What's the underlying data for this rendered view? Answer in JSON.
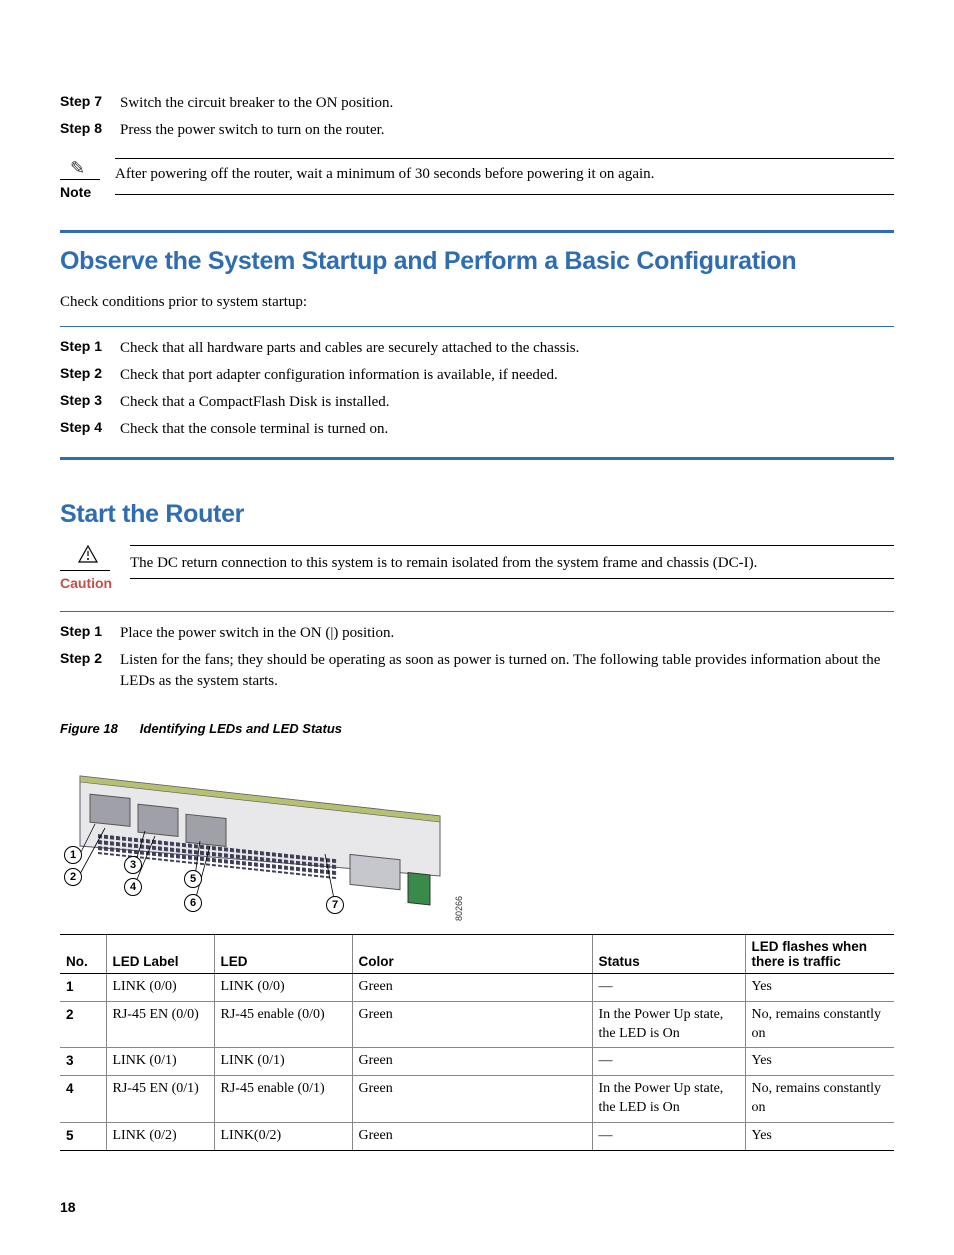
{
  "top_steps": [
    {
      "label": "Step 7",
      "text": "Switch the circuit breaker to the ON position."
    },
    {
      "label": "Step 8",
      "text": "Press the power switch to turn on the router."
    }
  ],
  "note": {
    "label": "Note",
    "text": "After powering off the router, wait a minimum of 30 seconds before powering it on again."
  },
  "section_a": {
    "heading": "Observe the System Startup and Perform a Basic Configuration",
    "intro": "Check conditions prior to system startup:",
    "steps": [
      {
        "label": "Step 1",
        "text": "Check that all hardware parts and cables are securely attached to the chassis."
      },
      {
        "label": "Step 2",
        "text": "Check that port adapter configuration information is available, if needed."
      },
      {
        "label": "Step 3",
        "text": "Check that a CompactFlash Disk is installed."
      },
      {
        "label": "Step 4",
        "text": "Check that the console terminal is turned on."
      }
    ]
  },
  "section_b": {
    "heading": "Start the Router",
    "caution": {
      "label": "Caution",
      "text": "The DC return connection to this system is to remain isolated from the system frame and chassis (DC-I)."
    },
    "steps": [
      {
        "label": "Step 1",
        "text": "Place the power switch in the ON (|) position."
      },
      {
        "label": "Step 2",
        "text": "Listen for the fans; they should be operating as soon as power is turned on. The following table provides information about the LEDs as the system starts."
      }
    ]
  },
  "figure": {
    "num": "Figure 18",
    "title": "Identifying LEDs and LED Status",
    "id_num": "80266",
    "callouts": [
      "1",
      "2",
      "3",
      "4",
      "5",
      "6",
      "7"
    ]
  },
  "table": {
    "headers": {
      "no": "No.",
      "label": "LED Label",
      "led": "LED",
      "color": "Color",
      "status": "Status",
      "flash": "LED flashes when there is traffic"
    },
    "rows": [
      {
        "no": "1",
        "label": "LINK (0/0)",
        "led": "LINK (0/0)",
        "color": "Green",
        "status": "—",
        "flash": "Yes"
      },
      {
        "no": "2",
        "label": "RJ-45 EN (0/0)",
        "led": "RJ-45 enable (0/0)",
        "color": "Green",
        "status": "In the Power Up state, the LED is On",
        "flash": "No, remains constantly on"
      },
      {
        "no": "3",
        "label": "LINK (0/1)",
        "led": "LINK (0/1)",
        "color": "Green",
        "status": "—",
        "flash": "Yes"
      },
      {
        "no": "4",
        "label": "RJ-45 EN (0/1)",
        "led": "RJ-45 enable (0/1)",
        "color": "Green",
        "status": "In the Power Up state, the LED is On",
        "flash": "No, remains constantly on"
      },
      {
        "no": "5",
        "label": "LINK (0/2)",
        "led": "LINK(0/2)",
        "color": "Green",
        "status": "—",
        "flash": "Yes"
      }
    ]
  },
  "page_number": "18"
}
